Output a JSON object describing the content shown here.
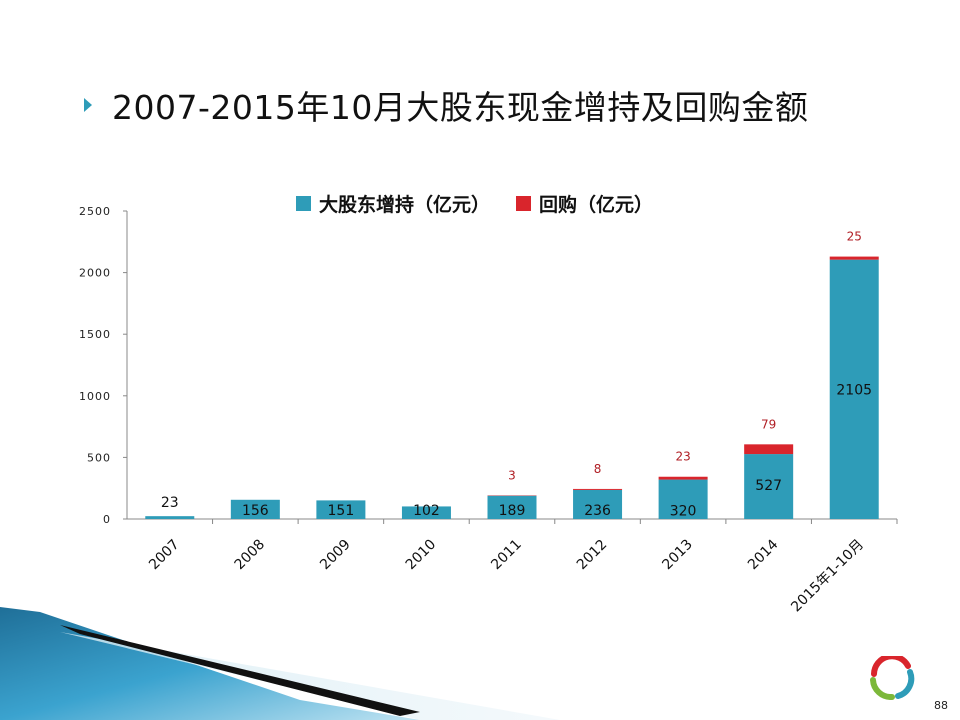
{
  "slide": {
    "title": "2007-2015年10月大股东现金增持及回购金额",
    "page_number": "88"
  },
  "colors": {
    "bullet": "#2e9cb8",
    "increase": "#2e9cb8",
    "buyback": "#d9252c"
  },
  "chart_data": {
    "type": "bar",
    "stacked": true,
    "categories": [
      "2007",
      "2008",
      "2009",
      "2010",
      "2011",
      "2012",
      "2013",
      "2014",
      "2015年1-10月"
    ],
    "series": [
      {
        "name": "大股东增持（亿元）",
        "color": "#2e9cb8",
        "values": [
          23,
          156,
          151,
          102,
          189,
          236,
          320,
          527,
          2105
        ]
      },
      {
        "name": "回购（亿元）",
        "color": "#d9252c",
        "values": [
          null,
          null,
          null,
          null,
          3,
          8,
          23,
          79,
          25
        ]
      }
    ],
    "yticks": [
      0,
      500,
      1000,
      1500,
      2000,
      2500
    ],
    "ylim": [
      0,
      2500
    ],
    "legend_position": "top",
    "grid": false
  }
}
